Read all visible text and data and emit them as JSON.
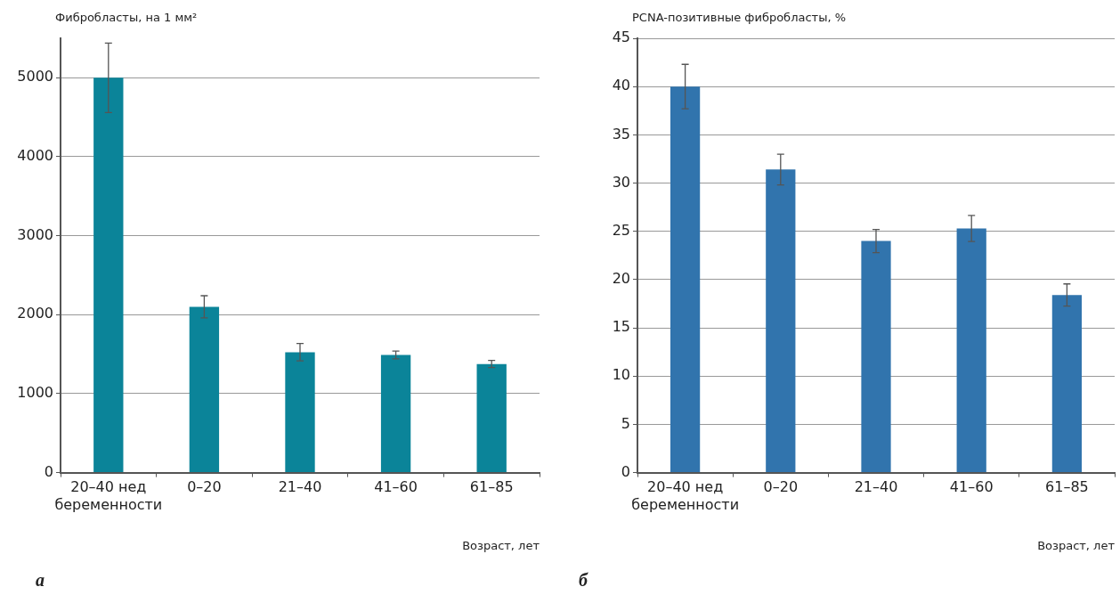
{
  "chart_data": [
    {
      "type": "bar",
      "ylabel": "Фибробласты, на 1 мм²",
      "xlabel": "Возраст, лет",
      "annotations": [
        "а"
      ],
      "categories": [
        "20–40 нед\nбеременности",
        "0–20",
        "21–40",
        "41–60",
        "61–85"
      ],
      "series": [
        {
          "color": "#0b8499",
          "values": [
            5000,
            2100,
            1525,
            1490,
            1375
          ],
          "errors": [
            440,
            140,
            110,
            50,
            45
          ]
        }
      ],
      "ylim": [
        0,
        5500
      ],
      "yticks": [
        0,
        1000,
        2000,
        3000,
        4000,
        5000
      ],
      "grid": "y",
      "legend": false
    },
    {
      "type": "bar",
      "ylabel": "PCNA-позитивные фибробласты, %",
      "xlabel": "Возраст, лет",
      "annotations": [
        "б"
      ],
      "categories": [
        "20–40 нед\nбеременности",
        "0–20",
        "21–40",
        "41–60",
        "61–85"
      ],
      "series": [
        {
          "color": "#3174ad",
          "values": [
            40,
            31.4,
            24,
            25.3,
            18.4
          ],
          "errors": [
            2.3,
            1.6,
            1.2,
            1.35,
            1.15
          ]
        }
      ],
      "ylim": [
        0,
        45
      ],
      "yticks": [
        0,
        5,
        10,
        15,
        20,
        25,
        30,
        35,
        40,
        45
      ],
      "grid": "y",
      "legend": false
    }
  ]
}
